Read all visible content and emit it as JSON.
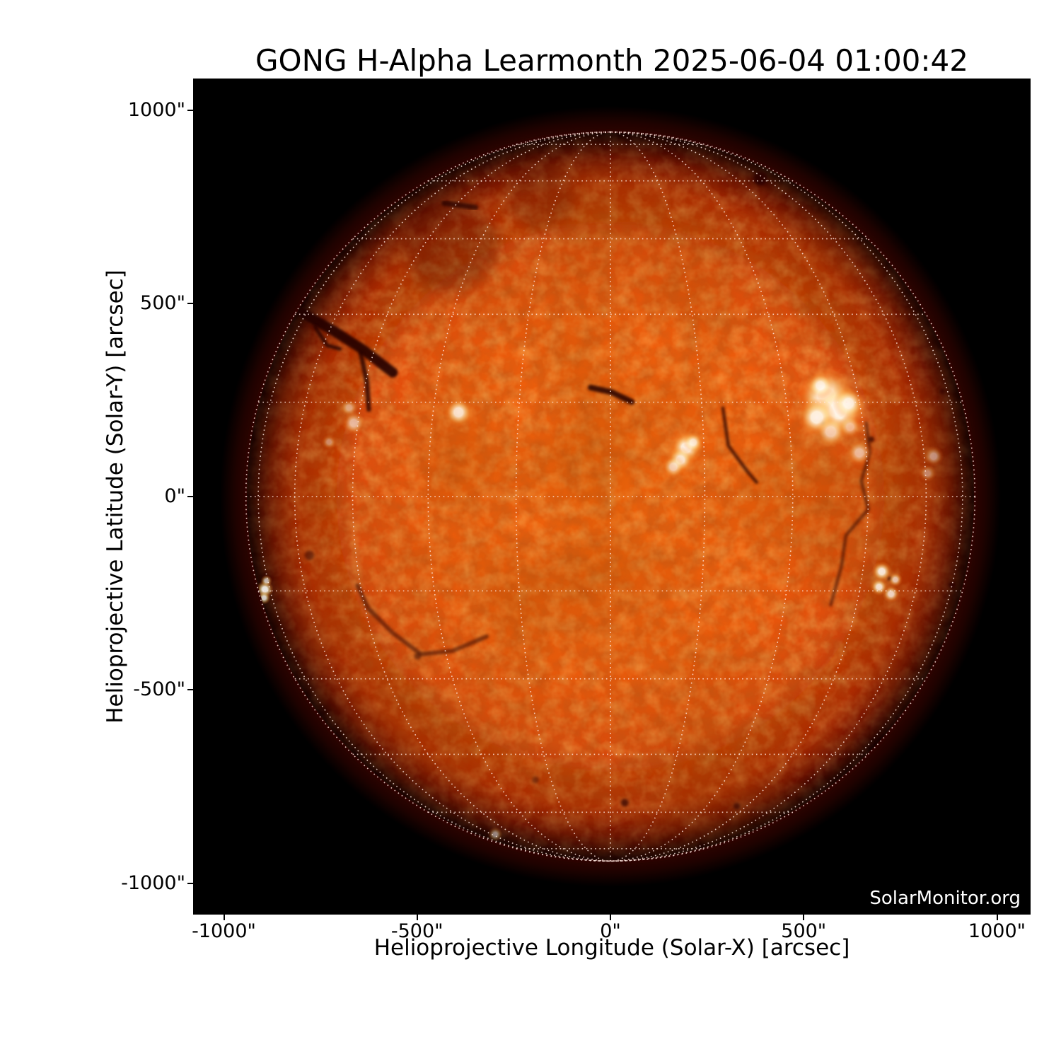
{
  "header": {
    "title": "GONG H-Alpha Learmonth 2025-06-04 01:00:42"
  },
  "watermark": {
    "label": "SolarMonitor.org",
    "color": "#ffffff"
  },
  "axes": {
    "xlabel": "Helioprojective Longitude (Solar-X) [arcsec]",
    "ylabel": "Helioprojective Latitude (Solar-Y) [arcsec]",
    "x_ticks": [
      {
        "value": -1000,
        "label": "-1000\""
      },
      {
        "value": -500,
        "label": "-500\""
      },
      {
        "value": 0,
        "label": "0\""
      },
      {
        "value": 500,
        "label": "500\""
      },
      {
        "value": 1000,
        "label": "1000\""
      }
    ],
    "y_ticks": [
      {
        "value": 1000,
        "label": "1000\""
      },
      {
        "value": 500,
        "label": "500\""
      },
      {
        "value": 0,
        "label": "0\""
      },
      {
        "value": -500,
        "label": "-500\""
      },
      {
        "value": -1000,
        "label": "-1000\""
      }
    ],
    "xlim": [
      -1080,
      1086
    ],
    "ylim": [
      -1083,
      1081
    ]
  },
  "chart_data": {
    "type": "heatmap",
    "title": "GONG H-Alpha Learmonth 2025-06-04 01:00:42",
    "instrument": "GONG H-Alpha",
    "site": "Learmonth",
    "observed_time": "2025-06-04 01:00:42",
    "xlabel": "Helioprojective Longitude (Solar-X) [arcsec]",
    "ylabel": "Helioprojective Latitude (Solar-Y) [arcsec]",
    "units": "arcsec",
    "solar_disk": {
      "center_arcsec": [
        0,
        0
      ],
      "radius_arcsec": 943,
      "disk_color": "#ee5c0c",
      "limb_color": "#6e0d02",
      "background": "#000000"
    },
    "grid": {
      "projection": "heliographic",
      "spacing_deg": 15,
      "style": "dotted",
      "color": "#ffe9e0",
      "opacity": 0.85
    },
    "features": {
      "plages": [
        {
          "x": 558,
          "y": 260,
          "r": 40,
          "i": 1.0
        },
        {
          "x": 589,
          "y": 223,
          "r": 37,
          "i": 1.0
        },
        {
          "x": 534,
          "y": 205,
          "r": 26,
          "i": 0.95
        },
        {
          "x": 616,
          "y": 241,
          "r": 22,
          "i": 0.9
        },
        {
          "x": 570,
          "y": 168,
          "r": 22,
          "i": 0.7
        },
        {
          "x": 644,
          "y": 113,
          "r": 18,
          "i": 0.6
        },
        {
          "x": 543,
          "y": 287,
          "r": 18,
          "i": 0.8
        },
        {
          "x": 620,
          "y": 180,
          "r": 16,
          "i": 0.55
        },
        {
          "x": 196,
          "y": 126,
          "r": 22,
          "i": 0.95
        },
        {
          "x": 181,
          "y": 95,
          "r": 18,
          "i": 0.85
        },
        {
          "x": 214,
          "y": 140,
          "r": 14,
          "i": 0.8
        },
        {
          "x": 163,
          "y": 77,
          "r": 16,
          "i": 0.7
        },
        {
          "x": -393,
          "y": 218,
          "r": 20,
          "i": 0.85
        },
        {
          "x": -664,
          "y": 190,
          "r": 16,
          "i": 0.6
        },
        {
          "x": -676,
          "y": 230,
          "r": 12,
          "i": 0.45
        },
        {
          "x": -728,
          "y": 141,
          "r": 10,
          "i": 0.4
        },
        {
          "x": 702,
          "y": -194,
          "r": 14,
          "i": 0.9
        },
        {
          "x": 695,
          "y": -234,
          "r": 12,
          "i": 0.85
        },
        {
          "x": 726,
          "y": -252,
          "r": 12,
          "i": 0.8
        },
        {
          "x": 737,
          "y": -215,
          "r": 10,
          "i": 0.7
        },
        {
          "x": -894,
          "y": -240,
          "r": 12,
          "i": 0.9
        },
        {
          "x": -896,
          "y": -262,
          "r": 9,
          "i": 0.8
        },
        {
          "x": -890,
          "y": -218,
          "r": 8,
          "i": 0.7
        },
        {
          "x": 836,
          "y": 104,
          "r": 14,
          "i": 0.5
        },
        {
          "x": 820,
          "y": 60,
          "r": 12,
          "i": 0.4
        },
        {
          "x": -298,
          "y": -874,
          "r": 10,
          "i": 0.5
        },
        {
          "x": -371,
          "y": -881,
          "r": 8,
          "i": 0.4
        },
        {
          "x": 575,
          "y": 200,
          "r": 160,
          "i": 0.18,
          "glow": true
        },
        {
          "x": 190,
          "y": 110,
          "r": 100,
          "i": 0.15,
          "glow": true
        },
        {
          "x": -400,
          "y": 215,
          "r": 60,
          "i": 0.12,
          "glow": true
        },
        {
          "x": 713,
          "y": -225,
          "r": 70,
          "i": 0.15,
          "glow": true
        },
        {
          "x": 832,
          "y": 20,
          "r": 45,
          "i": 0.14,
          "glow": true
        }
      ],
      "filaments": [
        {
          "points": [
            [
              -795,
              474
            ],
            [
              -715,
              428
            ],
            [
              -640,
              380
            ],
            [
              -563,
              321
            ]
          ],
          "width": 26,
          "opacity": 0.9
        },
        {
          "points": [
            [
              -764,
              439
            ],
            [
              -733,
              391
            ],
            [
              -700,
              382
            ]
          ],
          "width": 10,
          "opacity": 0.8
        },
        {
          "points": [
            [
              -646,
              371
            ],
            [
              -630,
              296
            ],
            [
              -625,
              225
            ]
          ],
          "width": 12,
          "opacity": 0.8
        },
        {
          "points": [
            [
              -51,
              282
            ],
            [
              3,
              270
            ],
            [
              55,
              245
            ]
          ],
          "width": 15,
          "opacity": 0.85
        },
        {
          "points": [
            [
              662,
              190
            ],
            [
              671,
              113
            ],
            [
              649,
              40
            ],
            [
              667,
              -33
            ],
            [
              609,
              -101
            ],
            [
              598,
              -179
            ],
            [
              570,
              -280
            ]
          ],
          "width": 9,
          "opacity": 0.5
        },
        {
          "points": [
            [
              291,
              229
            ],
            [
              305,
              132
            ],
            [
              355,
              64
            ],
            [
              378,
              37
            ]
          ],
          "width": 9,
          "opacity": 0.7
        },
        {
          "points": [
            [
              -654,
              -230
            ],
            [
              -627,
              -289
            ],
            [
              -563,
              -353
            ],
            [
              -490,
              -408
            ],
            [
              -408,
              -399
            ],
            [
              -320,
              -362
            ]
          ],
          "width": 11,
          "opacity": 0.5
        },
        {
          "points": [
            [
              -430,
              759
            ],
            [
              -349,
              748
            ]
          ],
          "width": 14,
          "opacity": 0.7
        }
      ],
      "dark_spots": [
        {
          "x": 388,
          "y": 823,
          "r": 16,
          "o": 0.8
        },
        {
          "x": 37,
          "y": -792,
          "r": 9,
          "o": 0.7
        },
        {
          "x": 327,
          "y": -801,
          "r": 8,
          "o": 0.6
        },
        {
          "x": -194,
          "y": -733,
          "r": 8,
          "o": 0.4
        },
        {
          "x": -499,
          "y": -413,
          "r": 8,
          "o": 0.5
        },
        {
          "x": -779,
          "y": -152,
          "r": 11,
          "o": 0.5
        },
        {
          "x": 885,
          "y": -229,
          "r": 8,
          "o": 0.8
        },
        {
          "x": 675,
          "y": 148,
          "r": 7,
          "o": 0.7
        },
        {
          "x": 859,
          "y": 272,
          "r": 7,
          "o": 0.5
        },
        {
          "x": 549,
          "y": 192,
          "r": 5,
          "o": 0.9
        },
        {
          "x": 722,
          "y": -212,
          "r": 5,
          "o": 0.9
        },
        {
          "x": -408,
          "y": 644,
          "r": 110,
          "o": 0.25
        },
        {
          "x": -180,
          "y": 770,
          "r": 80,
          "o": 0.18
        }
      ]
    }
  }
}
